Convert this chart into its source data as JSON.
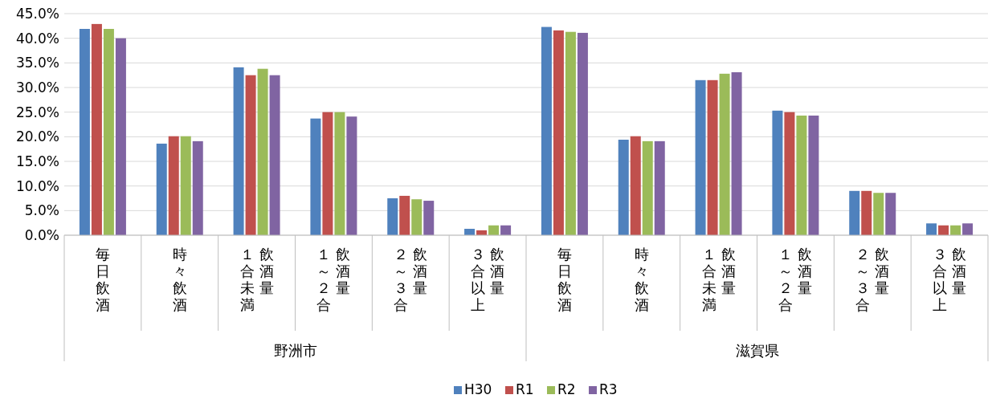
{
  "chart_data": {
    "type": "bar",
    "categories": [
      "毎日飲酒",
      "時々飲酒",
      "１合未満飲酒量",
      "１～２合飲酒量",
      "２～３合飲酒量",
      "３合以上飲酒量",
      "毎日飲酒",
      "時々飲酒",
      "１合未満飲酒量",
      "１～２合飲酒量",
      "２～３合飲酒量",
      "３合以上飲酒量"
    ],
    "annotations": [
      "野洲市",
      "滋賀県"
    ],
    "series": [
      {
        "name": "H30",
        "color": "#4f81bd",
        "values": [
          41.9,
          18.6,
          34.1,
          23.7,
          7.5,
          1.3,
          42.3,
          19.4,
          31.5,
          25.3,
          9.0,
          2.4
        ]
      },
      {
        "name": "R1",
        "color": "#c0504d",
        "values": [
          42.9,
          20.1,
          32.5,
          25.0,
          8.0,
          1.0,
          41.6,
          20.1,
          31.5,
          25.0,
          9.0,
          2.0
        ]
      },
      {
        "name": "R2",
        "color": "#9bbb59",
        "values": [
          41.9,
          20.1,
          33.8,
          25.0,
          7.3,
          2.0,
          41.3,
          19.1,
          32.8,
          24.3,
          8.6,
          2.0
        ]
      },
      {
        "name": "R3",
        "color": "#8064a2",
        "values": [
          40.0,
          19.1,
          32.5,
          24.1,
          7.0,
          2.0,
          41.1,
          19.1,
          33.1,
          24.3,
          8.6,
          2.4
        ]
      }
    ],
    "ylim": [
      0,
      45
    ],
    "yticks": [
      {
        "value": 0,
        "label": "0.0%"
      },
      {
        "value": 5,
        "label": "5.0%"
      },
      {
        "value": 10,
        "label": "10.0%"
      },
      {
        "value": 15,
        "label": "15.0%"
      },
      {
        "value": 20,
        "label": "20.0%"
      },
      {
        "value": 25,
        "label": "25.0%"
      },
      {
        "value": 30,
        "label": "30.0%"
      },
      {
        "value": 35,
        "label": "35.0%"
      },
      {
        "value": 40,
        "label": "40.0%"
      },
      {
        "value": 45,
        "label": "45.0%"
      }
    ],
    "grid": "y",
    "legend": "bottom"
  }
}
